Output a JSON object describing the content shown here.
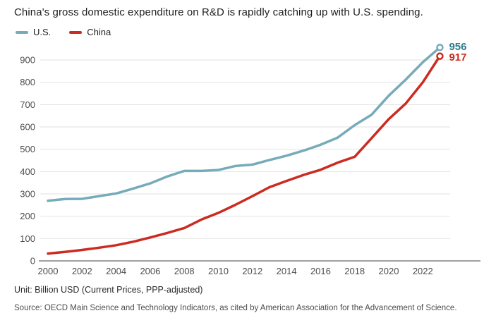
{
  "title": "China's gross domestic expenditure on R&D is rapidly catching up with U.S. spending.",
  "legend": [
    {
      "label": "U.S.",
      "color": "#76abb9"
    },
    {
      "label": "China",
      "color": "#cb2b20"
    }
  ],
  "chart_data": {
    "type": "line",
    "title": "China's gross domestic expenditure on R&D is rapidly catching up with U.S. spending.",
    "xlabel": "",
    "ylabel": "",
    "unit": "Billion USD (Current Prices, PPP-adjusted)",
    "x": [
      2000,
      2001,
      2002,
      2003,
      2004,
      2005,
      2006,
      2007,
      2008,
      2009,
      2010,
      2011,
      2012,
      2013,
      2014,
      2015,
      2016,
      2017,
      2018,
      2019,
      2020,
      2021,
      2022,
      2023
    ],
    "x_ticks": [
      2000,
      2002,
      2004,
      2006,
      2008,
      2010,
      2012,
      2014,
      2016,
      2018,
      2020,
      2022
    ],
    "y_ticks": [
      0,
      100,
      200,
      300,
      400,
      500,
      600,
      700,
      800,
      900
    ],
    "ylim": [
      0,
      960
    ],
    "grid": true,
    "legend_position": "top-left",
    "series": [
      {
        "name": "U.S.",
        "color": "#76abb9",
        "label_color": "#2e7d8c",
        "end_label": "956",
        "values": [
          269,
          277,
          278,
          290,
          302,
          324,
          347,
          378,
          403,
          403,
          407,
          425,
          431,
          452,
          471,
          494,
          520,
          552,
          608,
          655,
          740,
          812,
          890,
          956
        ]
      },
      {
        "name": "China",
        "color": "#cb2b20",
        "label_color": "#cb2b20",
        "end_label": "917",
        "values": [
          33,
          40,
          49,
          59,
          70,
          86,
          105,
          125,
          147,
          185,
          215,
          251,
          290,
          330,
          358,
          385,
          408,
          440,
          466,
          550,
          635,
          705,
          800,
          917
        ]
      }
    ],
    "grid_color": "#e2e2e2",
    "axis_color": "#a0a0a0"
  },
  "footer": {
    "unit": "Unit: Billion USD (Current Prices, PPP-adjusted)",
    "source": "Source: OECD Main Science and Technology Indicators, as cited by American Association for the Advancement of Science."
  }
}
